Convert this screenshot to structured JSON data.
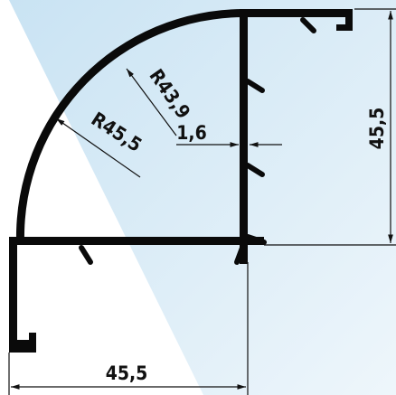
{
  "dimensions": {
    "inner_radius": "R43,9",
    "outer_radius": "R45,5",
    "wall_thickness": "1,6",
    "height": "45,5",
    "width": "45,5"
  }
}
